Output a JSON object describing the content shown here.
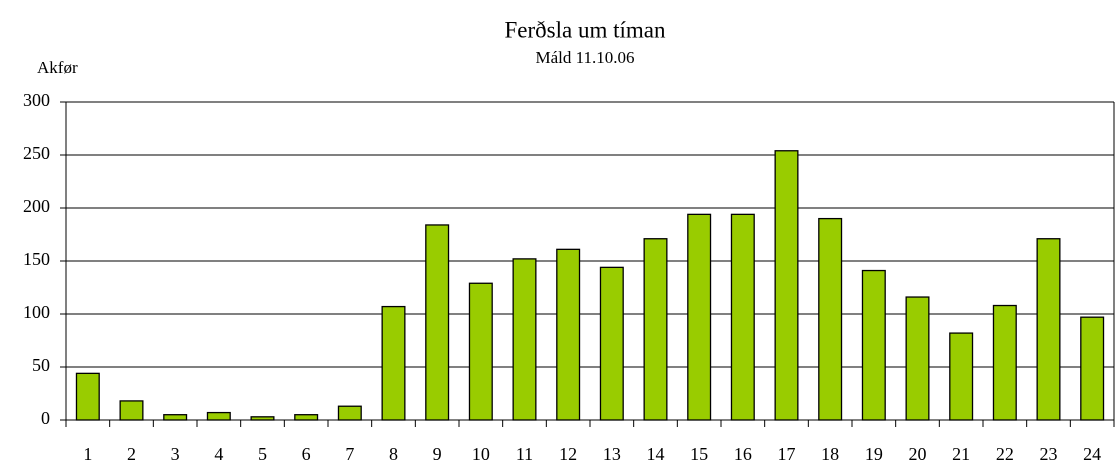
{
  "chart_data": {
    "type": "bar",
    "title": "Ferðsla um tíman",
    "subtitle": "Máld 11.10.06",
    "y_label": "Akfør",
    "categories": [
      "1",
      "2",
      "3",
      "4",
      "5",
      "6",
      "7",
      "8",
      "9",
      "10",
      "11",
      "12",
      "13",
      "14",
      "15",
      "16",
      "17",
      "18",
      "19",
      "20",
      "21",
      "22",
      "23",
      "24"
    ],
    "values": [
      44,
      18,
      5,
      7,
      3,
      5,
      13,
      107,
      184,
      129,
      152,
      161,
      144,
      171,
      194,
      194,
      254,
      190,
      141,
      116,
      82,
      108,
      171,
      97
    ],
    "color": "#99cc00",
    "ylim": [
      0,
      300
    ],
    "yticks": [
      0,
      50,
      100,
      150,
      200,
      250,
      300
    ],
    "grid": true
  }
}
